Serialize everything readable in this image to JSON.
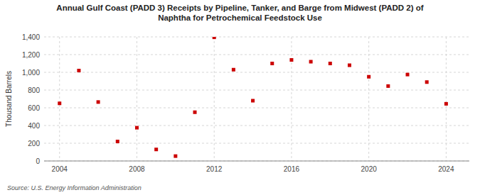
{
  "chart_data": {
    "type": "scatter",
    "title": "Annual Gulf Coast (PADD 3) Receipts by Pipeline, Tanker, and Barge from Midwest (PADD 2) of\nNaphtha for Petrochemical Feedstock Use",
    "ylabel": "Thousand Barrels",
    "annotations": [
      "Source: U.S. Energy Information Administration"
    ],
    "x": [
      2004,
      2005,
      2006,
      2007,
      2008,
      2009,
      2010,
      2011,
      2012,
      2013,
      2014,
      2015,
      2016,
      2017,
      2018,
      2019,
      2020,
      2021,
      2022,
      2023,
      2024
    ],
    "values": [
      650,
      1020,
      665,
      220,
      375,
      130,
      55,
      550,
      1395,
      1030,
      680,
      1100,
      1140,
      1120,
      1100,
      1080,
      950,
      845,
      975,
      890,
      645
    ],
    "color": "#cc0000",
    "marker": "square",
    "grid": true,
    "xlim": [
      2003.2,
      2025.2
    ],
    "xticks": [
      2004,
      2008,
      2012,
      2016,
      2020,
      2024
    ],
    "ylim": [
      0,
      1400
    ],
    "yticks": [
      0,
      200,
      400,
      600,
      800,
      {
        "value": 1000,
        "label": "1,000"
      },
      {
        "value": 1200,
        "label": "1,200"
      },
      {
        "value": 1400,
        "label": "1,400"
      }
    ]
  }
}
